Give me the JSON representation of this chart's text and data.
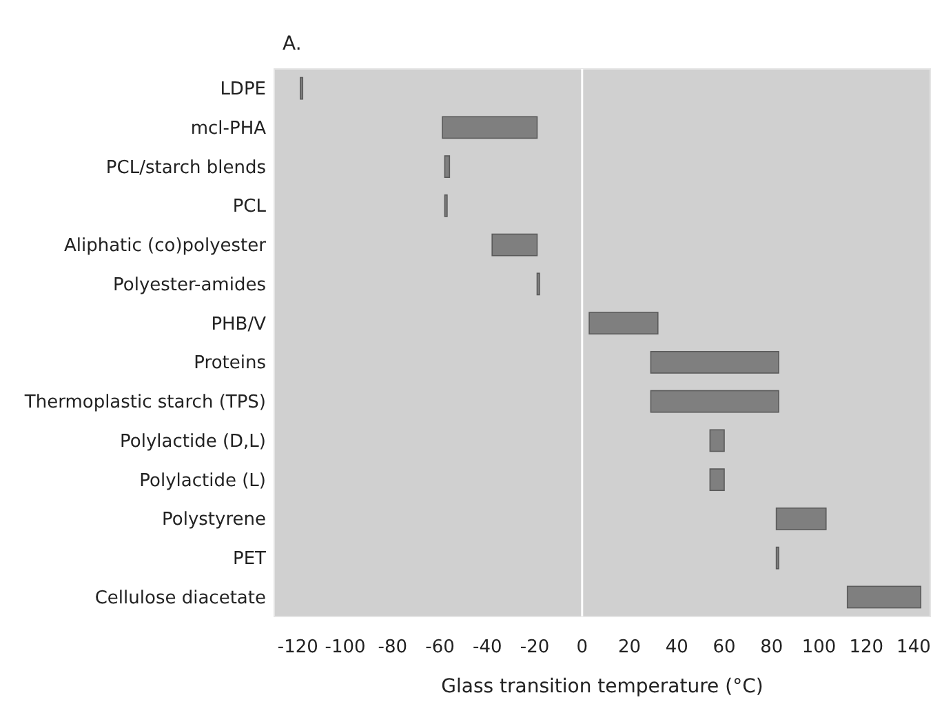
{
  "chart_data": {
    "type": "bar",
    "orientation": "horizontal",
    "title": "A.",
    "xlabel": "Glass transition temperature (°C)",
    "categories": [
      "LDPE",
      "mcl-PHA",
      "PCL/starch blends",
      "PCL",
      "Aliphatic (co)polyester",
      "Polyester-amides",
      "PHB/V",
      "Proteins",
      "Thermoplastic starch (TPS)",
      "Polylactide (D,L)",
      "Polylactide (L)",
      "Polystyrene",
      "PET",
      "Cellulose diacetate"
    ],
    "base": [
      -119,
      -59,
      -58,
      -58,
      -38,
      -19,
      3,
      29,
      29,
      54,
      54,
      82,
      82,
      112
    ],
    "values": [
      1,
      40,
      2,
      1,
      19,
      1,
      29,
      54,
      54,
      6,
      6,
      21,
      1,
      31
    ],
    "color": "#7f7f7f",
    "xlim": [
      -130,
      147
    ],
    "xticks": [
      -120,
      -100,
      -80,
      -60,
      -40,
      -20,
      0,
      20,
      40,
      60,
      80,
      100,
      120,
      140
    ],
    "ref_lines": [
      {
        "axis": "x",
        "value": 0,
        "color": "#ffffff"
      }
    ],
    "grid": false
  }
}
